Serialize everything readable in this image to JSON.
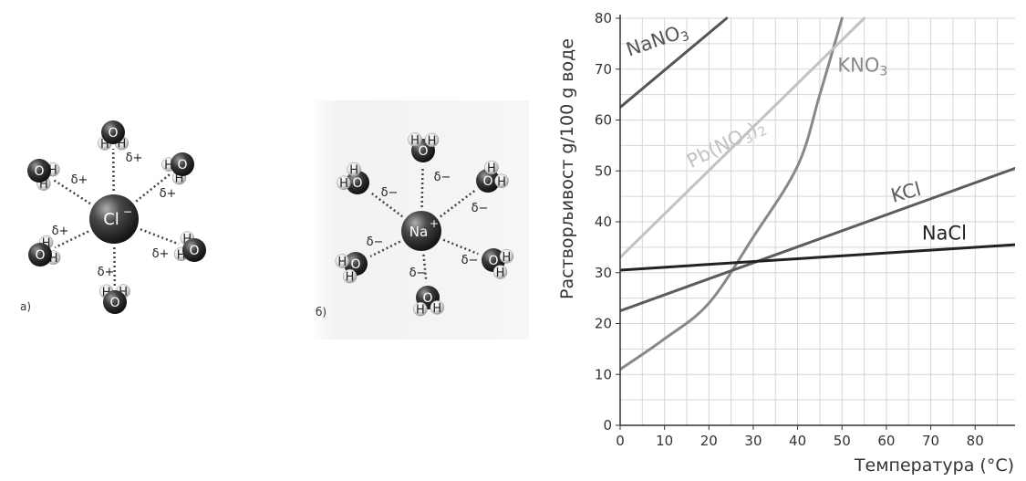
{
  "diagrams": [
    {
      "panel_label": "а)",
      "center_ion": {
        "symbol": "Cl",
        "charge": "−"
      },
      "partial_charge": "δ+",
      "waters": [
        {
          "atoms": [
            "H",
            "O",
            "H"
          ],
          "charge": "δ+"
        },
        {
          "atoms": [
            "H",
            "O",
            "H"
          ],
          "charge": "δ+"
        },
        {
          "atoms": [
            "H",
            "O",
            "H"
          ],
          "charge": "δ+"
        },
        {
          "atoms": [
            "H",
            "O",
            "H"
          ],
          "charge": "δ+"
        },
        {
          "atoms": [
            "H",
            "O",
            "H"
          ],
          "charge": "δ+"
        },
        {
          "atoms": [
            "H",
            "O",
            "H"
          ],
          "charge": "δ+"
        }
      ]
    },
    {
      "panel_label": "б)",
      "center_ion": {
        "symbol": "Na",
        "charge": "+"
      },
      "partial_charge": "δ−",
      "waters": [
        {
          "atoms": [
            "H",
            "O",
            "H"
          ],
          "charge": "δ−"
        },
        {
          "atoms": [
            "H",
            "O",
            "H"
          ],
          "charge": "δ−"
        },
        {
          "atoms": [
            "H",
            "O",
            "H"
          ],
          "charge": "δ−"
        },
        {
          "atoms": [
            "H",
            "O",
            "H"
          ],
          "charge": "δ−"
        },
        {
          "atoms": [
            "H",
            "O",
            "H"
          ],
          "charge": "δ−"
        },
        {
          "atoms": [
            "H",
            "O",
            "H"
          ],
          "charge": "δ−"
        }
      ]
    }
  ],
  "chart_data": {
    "type": "line",
    "title": "",
    "xlabel": "Температура (°C)",
    "ylabel": "Растворљивост g/100 g воде",
    "xlim": [
      0,
      89
    ],
    "ylim": [
      0,
      80
    ],
    "xticks": [
      0,
      10,
      20,
      30,
      40,
      50,
      60,
      70,
      80
    ],
    "yticks": [
      0,
      10,
      20,
      30,
      40,
      50,
      60,
      70,
      80
    ],
    "grid": true,
    "series": [
      {
        "name": "NaNO",
        "subscript": "3",
        "color": "#555555",
        "x": [
          0,
          24
        ],
        "y": [
          62.5,
          80
        ]
      },
      {
        "name": "KNO",
        "subscript": "3",
        "color": "#888888",
        "x": [
          0,
          10,
          20,
          30,
          40,
          45,
          50
        ],
        "y": [
          11,
          17,
          24,
          37,
          51,
          65,
          80
        ]
      },
      {
        "name": "Pb(NO",
        "subscript": "3",
        "suffix": ")",
        "suffix_subscript": "2",
        "color": "#c2c2c2",
        "x": [
          0,
          55
        ],
        "y": [
          33,
          80
        ]
      },
      {
        "name": "KCl",
        "color": "#5c5c5c",
        "x": [
          0,
          89
        ],
        "y": [
          22.5,
          50.5
        ]
      },
      {
        "name": "NaCl",
        "color": "#222222",
        "x": [
          0,
          89
        ],
        "y": [
          30.5,
          35.5
        ]
      }
    ]
  }
}
